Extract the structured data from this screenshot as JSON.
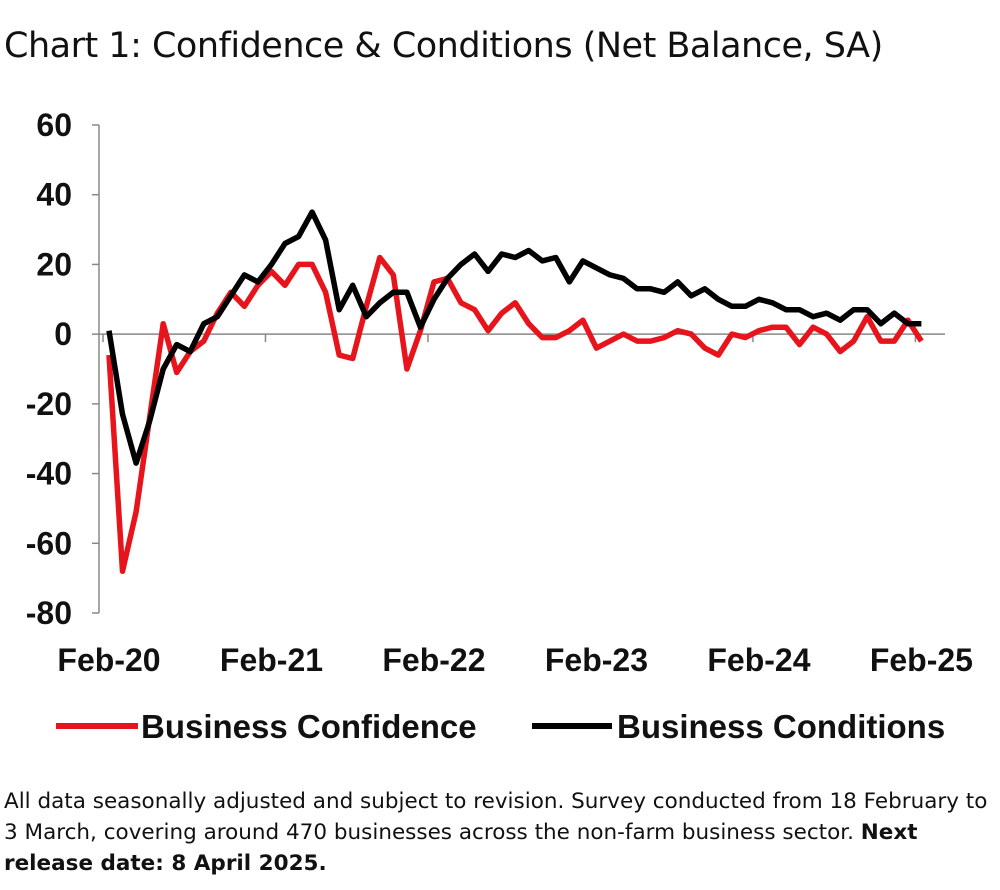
{
  "title": "Chart 1: Confidence & Conditions (Net Balance, SA)",
  "footnote": {
    "text": "All data seasonally adjusted and subject to revision. Survey conducted from 18 February to 3 March, covering around 470 businesses across the non-farm business sector.",
    "bold": "Next release date: 8 April 2025."
  },
  "chart_data": {
    "type": "line",
    "title": "Chart 1: Confidence & Conditions (Net Balance, SA)",
    "xlabel": "",
    "ylabel": "",
    "ylim": [
      -80,
      60
    ],
    "yticks": [
      "60",
      "40",
      "20",
      "0",
      "-20",
      "-40",
      "-60",
      "-80"
    ],
    "xtick_labels": [
      "Feb-20",
      "Feb-21",
      "Feb-22",
      "Feb-23",
      "Feb-24",
      "Feb-25"
    ],
    "x_start": "Feb-20",
    "x_frequency": "monthly",
    "grid": false,
    "legend_position": "bottom",
    "series": [
      {
        "name": "Business Confidence",
        "color": "#e8141b",
        "values": [
          -6,
          -68,
          -51,
          -24,
          3,
          -11,
          -5,
          -2,
          6,
          12,
          8,
          14,
          18,
          14,
          20,
          20,
          12,
          -6,
          -7,
          8,
          22,
          17,
          -10,
          1,
          15,
          16,
          9,
          7,
          1,
          6,
          9,
          3,
          -1,
          -1,
          1,
          4,
          -4,
          -2,
          0,
          -2,
          -2,
          -1,
          1,
          0,
          -4,
          -6,
          0,
          -1,
          1,
          2,
          2,
          -3,
          2,
          0,
          -5,
          -2,
          5,
          -2,
          -2,
          4,
          -2
        ],
        "x_start": "Feb-20"
      },
      {
        "name": "Business Conditions",
        "color": "#000000",
        "values": [
          1,
          -23,
          -37,
          -25,
          -10,
          -3,
          -5,
          3,
          5,
          11,
          17,
          15,
          20,
          26,
          28,
          35,
          27,
          7,
          14,
          5,
          9,
          12,
          12,
          2,
          10,
          16,
          20,
          23,
          18,
          23,
          22,
          24,
          21,
          22,
          15,
          21,
          19,
          17,
          16,
          13,
          13,
          12,
          15,
          11,
          13,
          10,
          8,
          8,
          10,
          9,
          7,
          7,
          5,
          6,
          4,
          7,
          7,
          3,
          6,
          3,
          3
        ],
        "x_start": "Feb-20"
      }
    ]
  }
}
